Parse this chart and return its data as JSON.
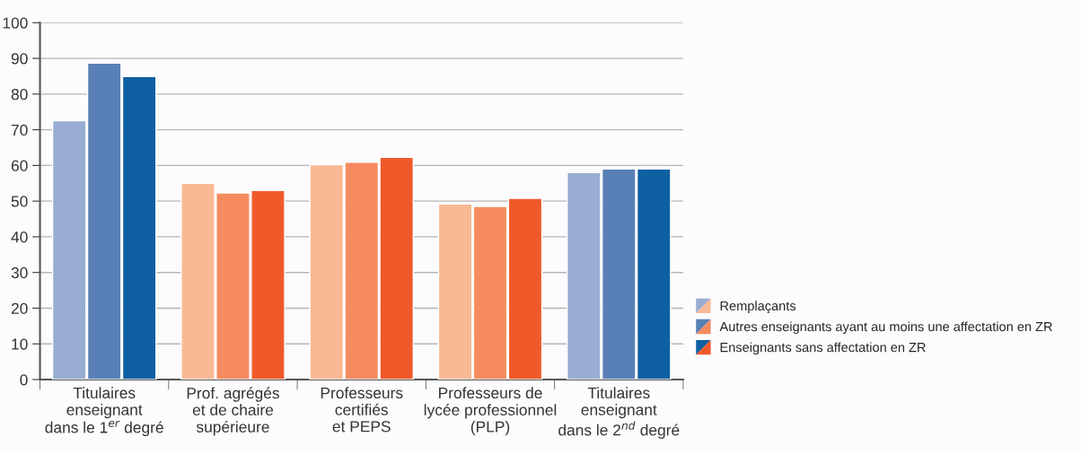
{
  "chart_data": {
    "type": "bar",
    "categories": [
      "Titulaires\nenseignant\ndans le 1$^{er}$ degré",
      "Prof. agrégés\net de chaire\nsupérieure",
      "Professeurs\ncertifiés\net PEPS",
      "Professeurs de\nlycée professionnel\n(PLP)",
      "Titulaires\nenseignant\ndans le 2$^{nd}$ degré"
    ],
    "series": [
      {
        "name": "Remplaçants",
        "colors": [
          "#99acd3",
          "#f9b995",
          "#f9b995",
          "#f9b995",
          "#99acd3"
        ],
        "values": [
          72.5,
          55.0,
          60.2,
          49.2,
          58.0
        ]
      },
      {
        "name": "Autres enseignants ayant au moins une affectation en ZR",
        "colors": [
          "#5880b6",
          "#f58b5f",
          "#f58b5f",
          "#f58b5f",
          "#5880b6"
        ],
        "values": [
          88.7,
          52.3,
          60.9,
          48.5,
          59.0
        ]
      },
      {
        "name": "Enseignants sans affectation en ZR",
        "colors": [
          "#0f5fa3",
          "#f05a2b",
          "#f05a2b",
          "#f05a2b",
          "#0f5fa3"
        ],
        "values": [
          84.9,
          53.0,
          62.3,
          50.8,
          59.0
        ]
      }
    ],
    "ylim": [
      0,
      100
    ],
    "yticks": [
      0,
      10,
      20,
      30,
      40,
      50,
      60,
      70,
      80,
      90,
      100
    ],
    "grid": "y",
    "legend": "bottom right"
  }
}
